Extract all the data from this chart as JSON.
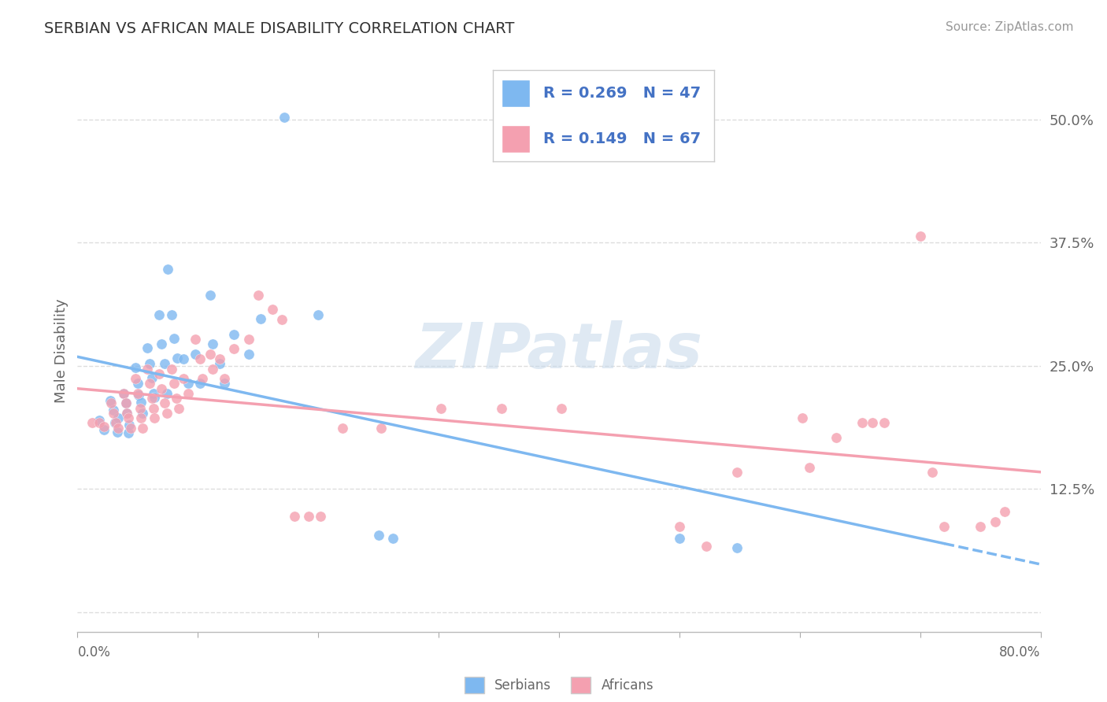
{
  "title": "SERBIAN VS AFRICAN MALE DISABILITY CORRELATION CHART",
  "source": "Source: ZipAtlas.com",
  "ylabel": "Male Disability",
  "watermark": "ZIPatlas",
  "xlim": [
    0.0,
    0.8
  ],
  "ylim": [
    -0.02,
    0.55
  ],
  "ytick_vals": [
    0.0,
    0.125,
    0.25,
    0.375,
    0.5
  ],
  "ytick_labels": [
    "",
    "12.5%",
    "25.0%",
    "37.5%",
    "50.0%"
  ],
  "xtick_vals": [
    0.0,
    0.1,
    0.2,
    0.3,
    0.4,
    0.5,
    0.6,
    0.7,
    0.8
  ],
  "serbian_color": "#7EB8F0",
  "african_color": "#F4A0B0",
  "serbian_R": 0.269,
  "serbian_N": 47,
  "african_R": 0.149,
  "african_N": 67,
  "serbian_points": [
    [
      0.018,
      0.195
    ],
    [
      0.022,
      0.185
    ],
    [
      0.027,
      0.215
    ],
    [
      0.03,
      0.205
    ],
    [
      0.031,
      0.192
    ],
    [
      0.033,
      0.183
    ],
    [
      0.034,
      0.197
    ],
    [
      0.038,
      0.222
    ],
    [
      0.04,
      0.212
    ],
    [
      0.041,
      0.202
    ],
    [
      0.042,
      0.182
    ],
    [
      0.043,
      0.19
    ],
    [
      0.048,
      0.248
    ],
    [
      0.05,
      0.232
    ],
    [
      0.051,
      0.22
    ],
    [
      0.053,
      0.213
    ],
    [
      0.054,
      0.202
    ],
    [
      0.058,
      0.268
    ],
    [
      0.06,
      0.252
    ],
    [
      0.062,
      0.238
    ],
    [
      0.063,
      0.222
    ],
    [
      0.064,
      0.218
    ],
    [
      0.068,
      0.302
    ],
    [
      0.07,
      0.272
    ],
    [
      0.072,
      0.252
    ],
    [
      0.074,
      0.222
    ],
    [
      0.075,
      0.348
    ],
    [
      0.078,
      0.302
    ],
    [
      0.08,
      0.278
    ],
    [
      0.083,
      0.258
    ],
    [
      0.088,
      0.257
    ],
    [
      0.092,
      0.232
    ],
    [
      0.098,
      0.262
    ],
    [
      0.102,
      0.232
    ],
    [
      0.11,
      0.322
    ],
    [
      0.112,
      0.272
    ],
    [
      0.118,
      0.252
    ],
    [
      0.122,
      0.232
    ],
    [
      0.13,
      0.282
    ],
    [
      0.142,
      0.262
    ],
    [
      0.152,
      0.298
    ],
    [
      0.172,
      0.502
    ],
    [
      0.2,
      0.302
    ],
    [
      0.25,
      0.078
    ],
    [
      0.262,
      0.075
    ],
    [
      0.5,
      0.075
    ],
    [
      0.548,
      0.065
    ]
  ],
  "african_points": [
    [
      0.012,
      0.192
    ],
    [
      0.018,
      0.192
    ],
    [
      0.022,
      0.188
    ],
    [
      0.028,
      0.212
    ],
    [
      0.03,
      0.202
    ],
    [
      0.032,
      0.192
    ],
    [
      0.034,
      0.187
    ],
    [
      0.038,
      0.222
    ],
    [
      0.04,
      0.212
    ],
    [
      0.041,
      0.202
    ],
    [
      0.042,
      0.197
    ],
    [
      0.044,
      0.187
    ],
    [
      0.048,
      0.237
    ],
    [
      0.05,
      0.222
    ],
    [
      0.052,
      0.207
    ],
    [
      0.053,
      0.197
    ],
    [
      0.054,
      0.187
    ],
    [
      0.058,
      0.247
    ],
    [
      0.06,
      0.232
    ],
    [
      0.062,
      0.217
    ],
    [
      0.063,
      0.207
    ],
    [
      0.064,
      0.197
    ],
    [
      0.068,
      0.242
    ],
    [
      0.07,
      0.227
    ],
    [
      0.072,
      0.212
    ],
    [
      0.074,
      0.202
    ],
    [
      0.078,
      0.247
    ],
    [
      0.08,
      0.232
    ],
    [
      0.082,
      0.217
    ],
    [
      0.084,
      0.207
    ],
    [
      0.088,
      0.237
    ],
    [
      0.092,
      0.222
    ],
    [
      0.098,
      0.277
    ],
    [
      0.102,
      0.257
    ],
    [
      0.104,
      0.237
    ],
    [
      0.11,
      0.262
    ],
    [
      0.112,
      0.247
    ],
    [
      0.118,
      0.257
    ],
    [
      0.122,
      0.237
    ],
    [
      0.13,
      0.267
    ],
    [
      0.142,
      0.277
    ],
    [
      0.15,
      0.322
    ],
    [
      0.162,
      0.307
    ],
    [
      0.17,
      0.297
    ],
    [
      0.18,
      0.097
    ],
    [
      0.192,
      0.097
    ],
    [
      0.202,
      0.097
    ],
    [
      0.22,
      0.187
    ],
    [
      0.252,
      0.187
    ],
    [
      0.302,
      0.207
    ],
    [
      0.352,
      0.207
    ],
    [
      0.402,
      0.207
    ],
    [
      0.5,
      0.087
    ],
    [
      0.522,
      0.067
    ],
    [
      0.548,
      0.142
    ],
    [
      0.602,
      0.197
    ],
    [
      0.608,
      0.147
    ],
    [
      0.63,
      0.177
    ],
    [
      0.652,
      0.192
    ],
    [
      0.66,
      0.192
    ],
    [
      0.67,
      0.192
    ],
    [
      0.7,
      0.382
    ],
    [
      0.71,
      0.142
    ],
    [
      0.72,
      0.087
    ],
    [
      0.75,
      0.087
    ],
    [
      0.762,
      0.092
    ],
    [
      0.77,
      0.102
    ]
  ],
  "background_color": "#ffffff",
  "grid_color": "#dddddd",
  "title_color": "#333333",
  "axis_label_color": "#666666",
  "legend_color": "#4472C4"
}
